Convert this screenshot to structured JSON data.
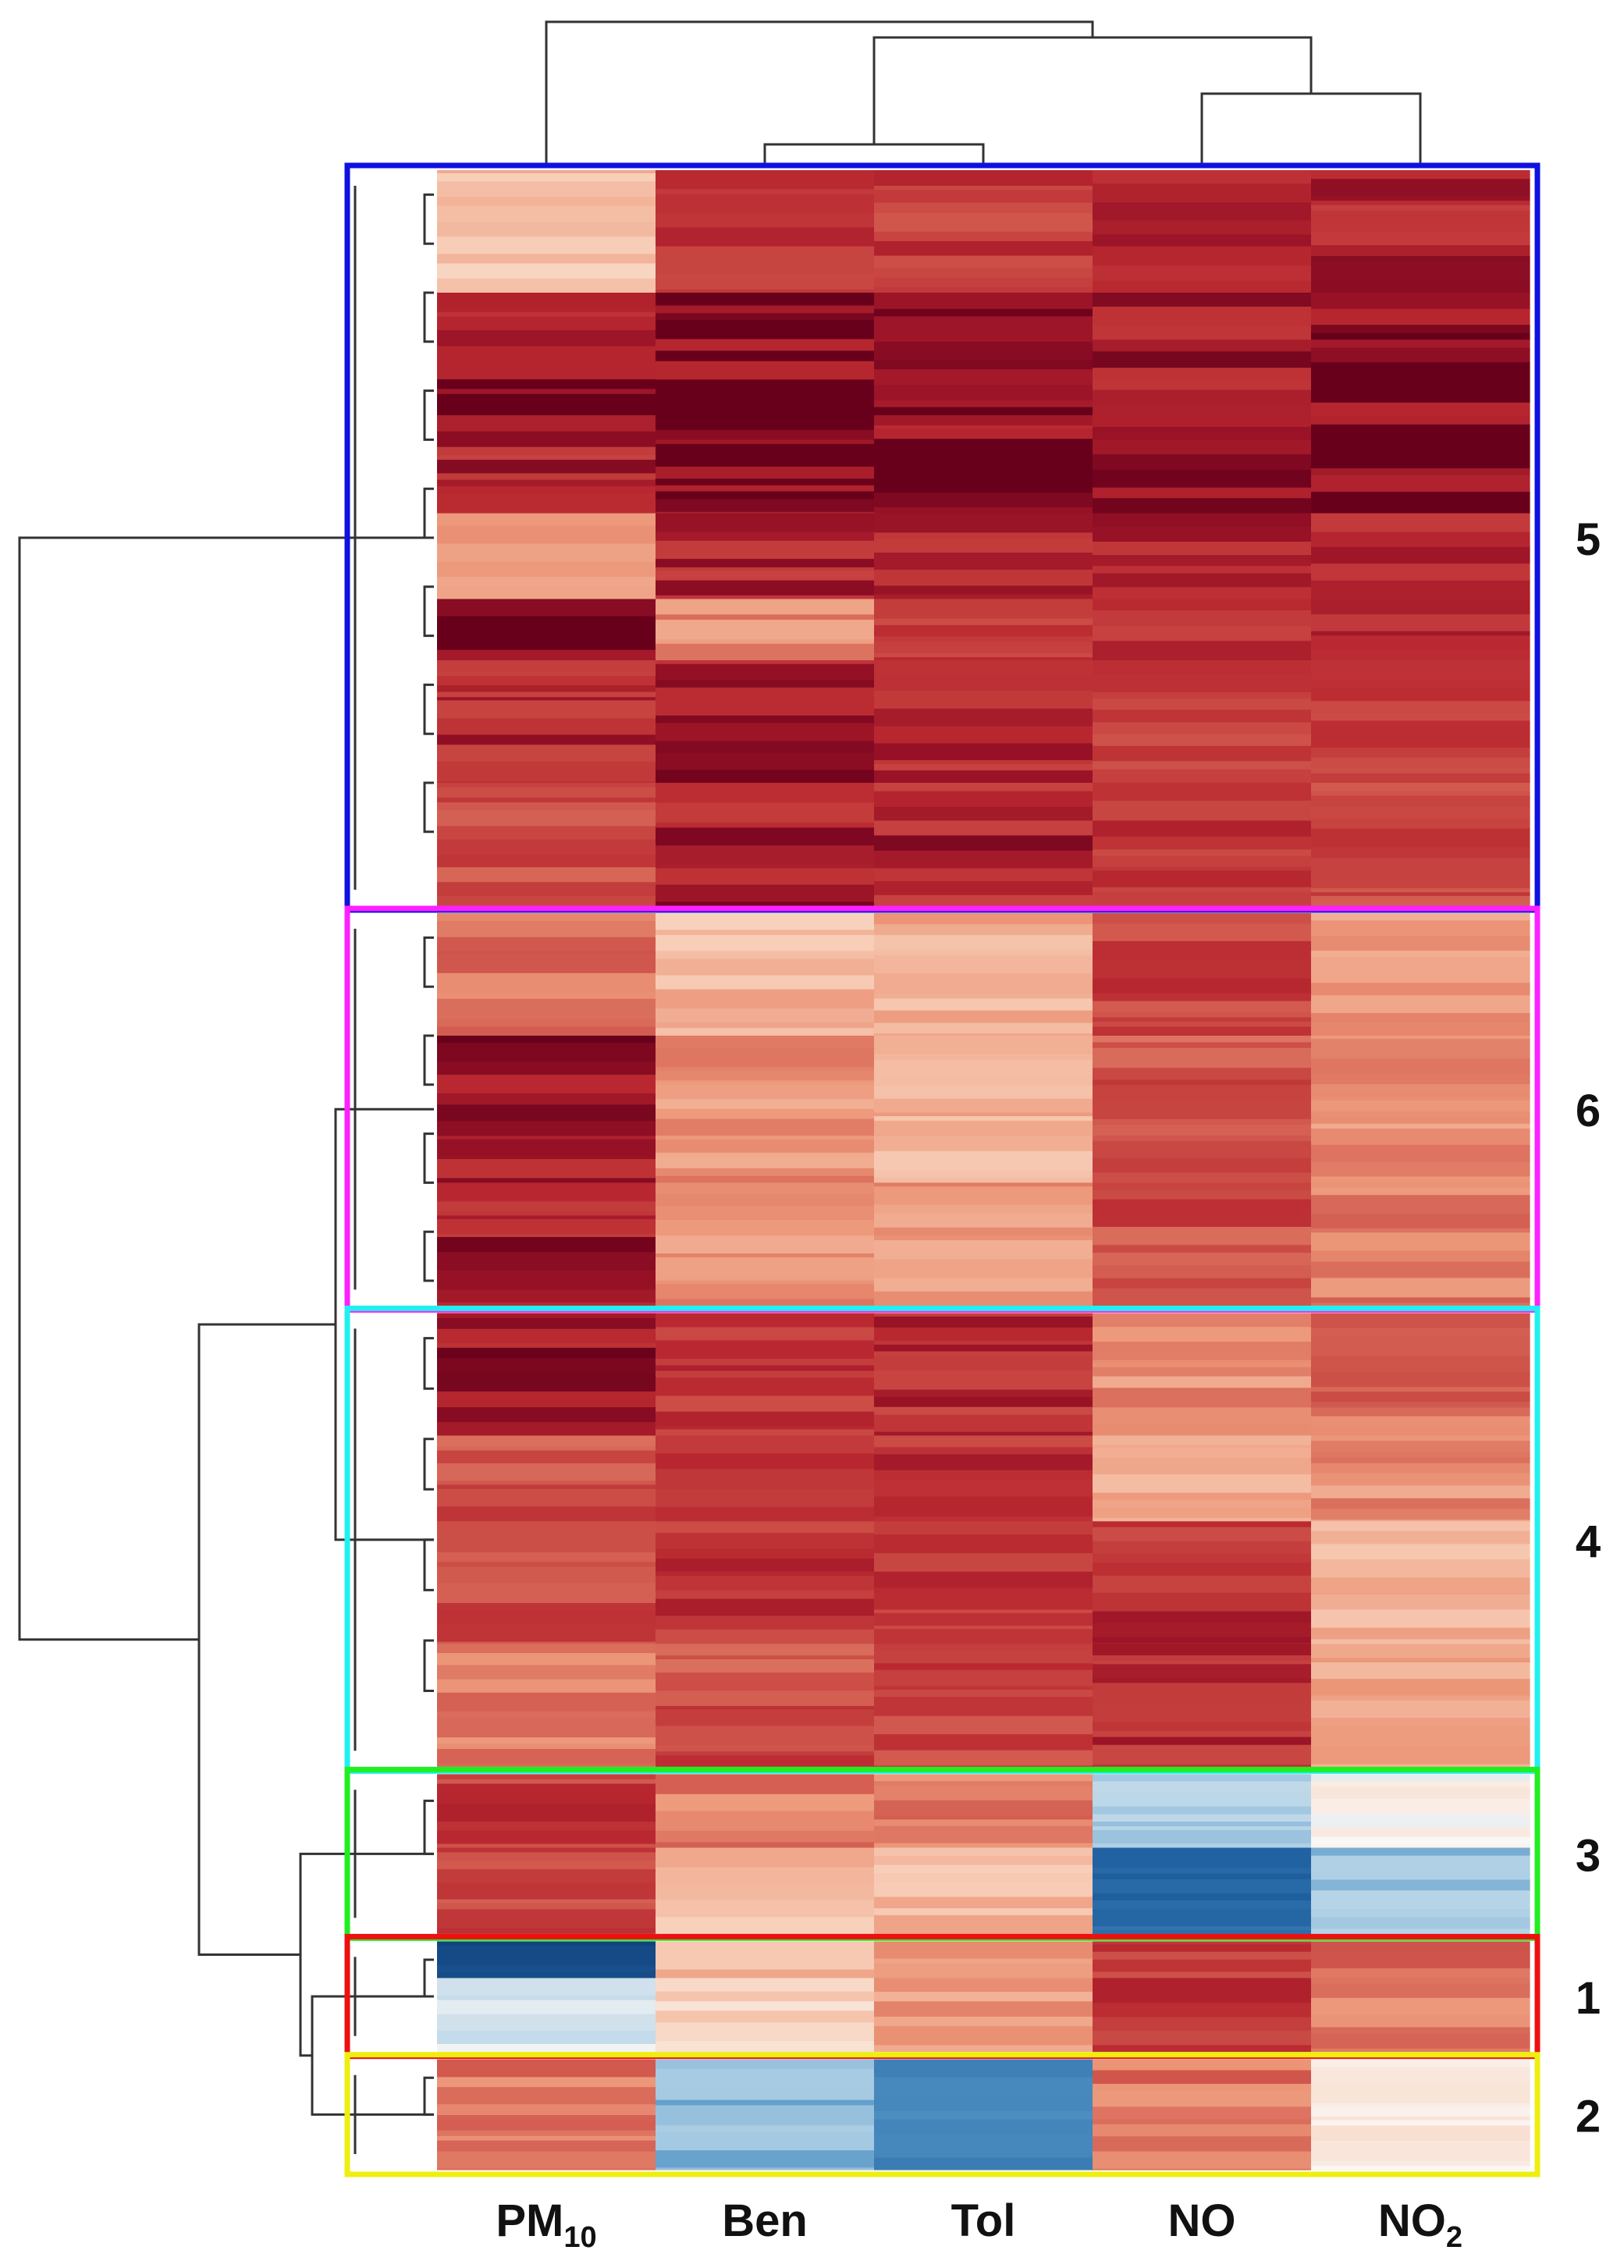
{
  "chart_data": {
    "type": "heatmap",
    "title": "",
    "colormap": "diverging blue-white-red (RdBu reversed)",
    "value_scale": "relative: -1 = deep blue, 0 = white, 1 = darkest red",
    "columns": [
      {
        "id": "pm10",
        "base": "PM",
        "sub": "10"
      },
      {
        "id": "ben",
        "base": "Ben",
        "sub": ""
      },
      {
        "id": "tol",
        "base": "Tol",
        "sub": ""
      },
      {
        "id": "no",
        "base": "NO",
        "sub": ""
      },
      {
        "id": "no2",
        "base": "NO",
        "sub": "2"
      }
    ],
    "column_dendrogram": "Ben and Tol join first; NO and NO2 join; these two pairs join; PM10 joins last",
    "row_dendrogram": "Two main branches: cluster 5 alone vs clusters 6, 4, 3, 1, 2 (1 and 2 closest, then 3)",
    "clusters": [
      {
        "id": "5",
        "label": "5",
        "box_color": "#1010e0",
        "relative_size": 60,
        "mean_values": {
          "pm10": 0.72,
          "ben": 0.86,
          "tol": 0.86,
          "no": 0.88,
          "no2": 0.88
        },
        "segments": [
          {
            "size": 10,
            "values": [
              0.32,
              0.78,
              0.78,
              0.88,
              0.86
            ]
          },
          {
            "size": 10,
            "values": [
              0.92,
              0.96,
              0.94,
              0.88,
              0.96
            ]
          },
          {
            "size": 8,
            "values": [
              0.86,
              0.97,
              0.95,
              0.88,
              0.96
            ]
          },
          {
            "size": 7,
            "values": [
              0.5,
              0.86,
              0.88,
              0.88,
              0.88
            ]
          },
          {
            "size": 5,
            "values": [
              0.97,
              0.52,
              0.82,
              0.78,
              0.86
            ]
          },
          {
            "size": 10,
            "values": [
              0.85,
              0.88,
              0.86,
              0.75,
              0.8
            ]
          },
          {
            "size": 10,
            "values": [
              0.72,
              0.88,
              0.86,
              0.78,
              0.72
            ]
          }
        ]
      },
      {
        "id": "6",
        "label": "6",
        "box_color": "#ff20ff",
        "relative_size": 32,
        "mean_values": {
          "pm10": 0.86,
          "ben": 0.45,
          "tol": 0.42,
          "no": 0.74,
          "no2": 0.5
        },
        "segments": [
          {
            "size": 10,
            "values": [
              0.62,
              0.35,
              0.4,
              0.78,
              0.45
            ]
          },
          {
            "size": 12,
            "values": [
              0.92,
              0.5,
              0.38,
              0.7,
              0.52
            ]
          },
          {
            "size": 10,
            "values": [
              0.88,
              0.52,
              0.5,
              0.72,
              0.58
            ]
          }
        ]
      },
      {
        "id": "4",
        "label": "4",
        "box_color": "#20f0f0",
        "relative_size": 37,
        "mean_values": {
          "pm10": 0.75,
          "ben": 0.78,
          "tol": 0.8,
          "no": 0.65,
          "no2": 0.45
        },
        "segments": [
          {
            "size": 10,
            "values": [
              0.9,
              0.8,
              0.82,
              0.52,
              0.62
            ]
          },
          {
            "size": 7,
            "values": [
              0.7,
              0.85,
              0.82,
              0.42,
              0.52
            ]
          },
          {
            "size": 10,
            "values": [
              0.72,
              0.78,
              0.8,
              0.82,
              0.38
            ]
          },
          {
            "size": 10,
            "values": [
              0.55,
              0.72,
              0.78,
              0.82,
              0.4
            ]
          }
        ]
      },
      {
        "id": "3",
        "label": "3",
        "box_color": "#20ee20",
        "relative_size": 13,
        "mean_values": {
          "pm10": 0.76,
          "ben": 0.42,
          "tol": 0.45,
          "no": -0.45,
          "no2": -0.15
        },
        "segments": [
          {
            "size": 6,
            "values": [
              0.78,
              0.55,
              0.6,
              -0.22,
              0.02
            ]
          },
          {
            "size": 7,
            "values": [
              0.74,
              0.32,
              0.35,
              -0.7,
              -0.28
            ]
          }
        ]
      },
      {
        "id": "1",
        "label": "1",
        "box_color": "#ee1010",
        "relative_size": 9,
        "mean_values": {
          "pm10": -0.45,
          "ben": 0.25,
          "tol": 0.48,
          "no": 0.8,
          "no2": 0.58
        },
        "segments": [
          {
            "size": 3,
            "values": [
              -0.92,
              0.32,
              0.5,
              0.8,
              0.62
            ]
          },
          {
            "size": 6,
            "values": [
              -0.1,
              0.2,
              0.45,
              0.8,
              0.55
            ]
          }
        ]
      },
      {
        "id": "2",
        "label": "2",
        "box_color": "#eeee10",
        "relative_size": 9,
        "mean_values": {
          "pm10": 0.58,
          "ben": -0.35,
          "tol": -0.55,
          "no": 0.6,
          "no2": 0.05
        },
        "segments": [
          {
            "size": 9,
            "values": [
              0.58,
              -0.35,
              -0.55,
              0.6,
              0.05
            ]
          }
        ]
      }
    ]
  }
}
